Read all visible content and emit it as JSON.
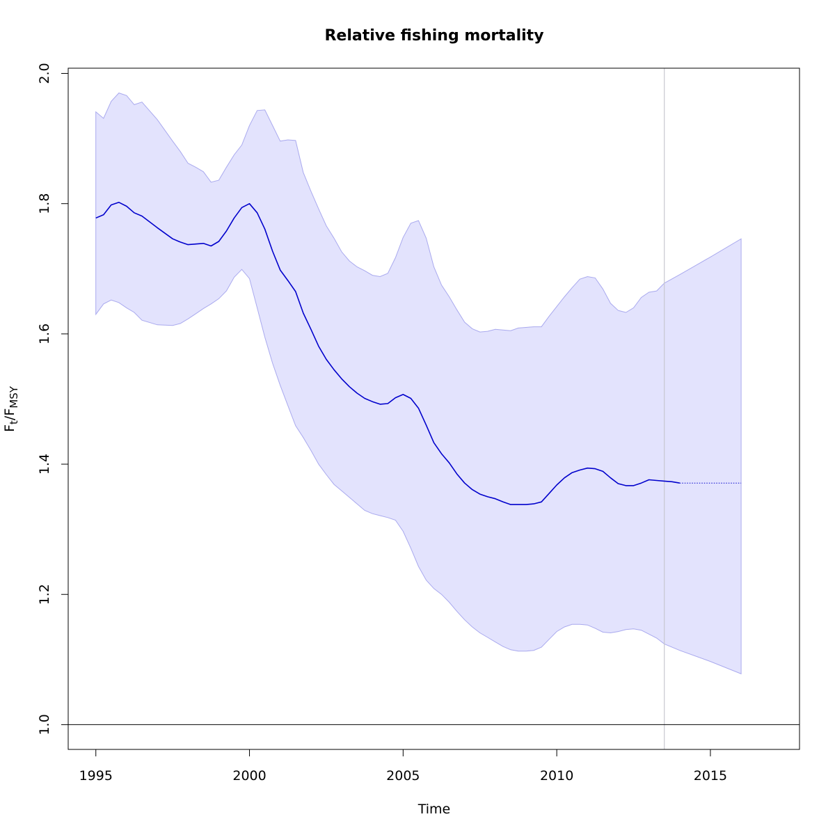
{
  "chart_data": {
    "type": "line",
    "title": "Relative fishing mortality",
    "xlabel": "Time",
    "ylabel": {
      "main": "F",
      "sub1": "t",
      "sep": "/F",
      "sub2": "MSY"
    },
    "xlim": [
      1994.1,
      2017.9
    ],
    "ylim": [
      0.962,
      2.008
    ],
    "x_ticks": [
      {
        "value": 1995,
        "label": "1995"
      },
      {
        "value": 2000,
        "label": "2000"
      },
      {
        "value": 2005,
        "label": "2005"
      },
      {
        "value": 2010,
        "label": "2010"
      },
      {
        "value": 2015,
        "label": "2015"
      }
    ],
    "y_ticks": [
      {
        "value": 1.0,
        "label": "1.0"
      },
      {
        "value": 1.2,
        "label": "1.2"
      },
      {
        "value": 1.4,
        "label": "1.4"
      },
      {
        "value": 1.6,
        "label": "1.6"
      },
      {
        "value": 1.8,
        "label": "1.8"
      },
      {
        "value": 2.0,
        "label": "2.0"
      }
    ],
    "reference_line_y": 1.0,
    "vertical_line_x": 2013.5,
    "colors": {
      "band_fill": "#e3e3fd",
      "band_edge": "#a9a9ee",
      "line": "#0000cc",
      "vline": "#c8c8d0",
      "refline": "#000000"
    },
    "series": [
      {
        "role": "estimate",
        "x": [
          1995.0,
          1995.25,
          1995.5,
          1995.75,
          1996.0,
          1996.25,
          1996.5,
          1997.0,
          1997.5,
          1997.75,
          1998.0,
          1998.5,
          1998.75,
          1999.0,
          1999.25,
          1999.5,
          1999.75,
          2000.0,
          2000.25,
          2000.5,
          2000.75,
          2001.0,
          2001.25,
          2001.5,
          2001.75,
          2002.0,
          2002.25,
          2002.5,
          2002.75,
          2003.0,
          2003.25,
          2003.5,
          2003.75,
          2004.0,
          2004.25,
          2004.5,
          2004.75,
          2005.0,
          2005.25,
          2005.5,
          2005.75,
          2006.0,
          2006.25,
          2006.5,
          2006.75,
          2007.0,
          2007.25,
          2007.5,
          2007.75,
          2008.0,
          2008.25,
          2008.5,
          2008.75,
          2009.0,
          2009.25,
          2009.5,
          2009.75,
          2010.0,
          2010.25,
          2010.5,
          2010.75,
          2011.0,
          2011.25,
          2011.5,
          2011.75,
          2012.0,
          2012.25,
          2012.5,
          2012.75,
          2013.0,
          2013.25,
          2013.5,
          2013.75,
          2014.0
        ],
        "y": [
          1.778,
          1.783,
          1.798,
          1.802,
          1.796,
          1.786,
          1.781,
          1.763,
          1.746,
          1.741,
          1.737,
          1.739,
          1.735,
          1.742,
          1.758,
          1.778,
          1.794,
          1.8,
          1.786,
          1.761,
          1.727,
          1.698,
          1.682,
          1.665,
          1.632,
          1.607,
          1.581,
          1.561,
          1.545,
          1.531,
          1.519,
          1.509,
          1.501,
          1.496,
          1.492,
          1.493,
          1.502,
          1.507,
          1.501,
          1.486,
          1.46,
          1.433,
          1.416,
          1.402,
          1.385,
          1.371,
          1.361,
          1.354,
          1.35,
          1.347,
          1.342,
          1.338,
          1.338,
          1.338,
          1.339,
          1.342,
          1.355,
          1.368,
          1.379,
          1.387,
          1.391,
          1.394,
          1.393,
          1.389,
          1.379,
          1.37,
          1.367,
          1.367,
          1.371,
          1.376,
          1.375,
          1.374,
          1.373,
          1.371
        ]
      },
      {
        "role": "forecast",
        "x": [
          2014.0,
          2016.0
        ],
        "y": [
          1.371,
          1.371
        ]
      },
      {
        "role": "upper",
        "x": [
          1995.0,
          1995.25,
          1995.5,
          1995.75,
          1996.0,
          1996.25,
          1996.5,
          1997.0,
          1997.5,
          1997.75,
          1998.0,
          1998.25,
          1998.5,
          1998.75,
          1999.0,
          1999.25,
          1999.5,
          1999.75,
          2000.0,
          2000.25,
          2000.5,
          2000.75,
          2001.0,
          2001.25,
          2001.5,
          2001.75,
          2002.0,
          2002.25,
          2002.5,
          2002.75,
          2003.0,
          2003.25,
          2003.5,
          2003.75,
          2004.0,
          2004.25,
          2004.5,
          2004.75,
          2005.0,
          2005.25,
          2005.5,
          2005.75,
          2006.0,
          2006.25,
          2006.5,
          2006.75,
          2007.0,
          2007.25,
          2007.5,
          2007.75,
          2008.0,
          2008.25,
          2008.5,
          2008.75,
          2009.0,
          2009.25,
          2009.5,
          2009.75,
          2010.0,
          2010.25,
          2010.5,
          2010.75,
          2011.0,
          2011.25,
          2011.5,
          2011.75,
          2012.0,
          2012.25,
          2012.5,
          2012.75,
          2013.0,
          2013.25,
          2013.5,
          2014.0,
          2015.0,
          2016.0
        ],
        "y": [
          1.941,
          1.931,
          1.957,
          1.97,
          1.966,
          1.952,
          1.956,
          1.929,
          1.896,
          1.88,
          1.862,
          1.856,
          1.849,
          1.833,
          1.836,
          1.856,
          1.875,
          1.89,
          1.92,
          1.943,
          1.944,
          1.92,
          1.896,
          1.898,
          1.897,
          1.848,
          1.819,
          1.792,
          1.766,
          1.747,
          1.726,
          1.712,
          1.703,
          1.697,
          1.69,
          1.688,
          1.693,
          1.717,
          1.748,
          1.77,
          1.774,
          1.747,
          1.703,
          1.675,
          1.657,
          1.637,
          1.618,
          1.608,
          1.603,
          1.604,
          1.607,
          1.606,
          1.605,
          1.609,
          1.61,
          1.611,
          1.611,
          1.627,
          1.642,
          1.657,
          1.671,
          1.684,
          1.688,
          1.686,
          1.669,
          1.647,
          1.636,
          1.633,
          1.64,
          1.656,
          1.664,
          1.666,
          1.678,
          1.691,
          1.718,
          1.746
        ]
      },
      {
        "role": "lower",
        "x": [
          1995.0,
          1995.25,
          1995.5,
          1995.75,
          1996.0,
          1996.25,
          1996.5,
          1997.0,
          1997.5,
          1997.75,
          1998.0,
          1998.25,
          1998.5,
          1998.75,
          1999.0,
          1999.25,
          1999.5,
          1999.75,
          2000.0,
          2000.25,
          2000.5,
          2000.75,
          2001.0,
          2001.25,
          2001.5,
          2001.75,
          2002.0,
          2002.25,
          2002.5,
          2002.75,
          2003.0,
          2003.25,
          2003.5,
          2003.75,
          2004.0,
          2004.25,
          2004.5,
          2004.75,
          2005.0,
          2005.25,
          2005.5,
          2005.75,
          2006.0,
          2006.25,
          2006.5,
          2006.75,
          2007.0,
          2007.25,
          2007.5,
          2007.75,
          2008.0,
          2008.25,
          2008.5,
          2008.75,
          2009.0,
          2009.25,
          2009.5,
          2009.75,
          2010.0,
          2010.25,
          2010.5,
          2010.75,
          2011.0,
          2011.25,
          2011.5,
          2011.75,
          2012.0,
          2012.25,
          2012.5,
          2012.75,
          2013.0,
          2013.25,
          2013.5,
          2014.0,
          2015.0,
          2016.0
        ],
        "y": [
          1.63,
          1.646,
          1.652,
          1.648,
          1.64,
          1.633,
          1.621,
          1.614,
          1.613,
          1.616,
          1.623,
          1.631,
          1.639,
          1.646,
          1.654,
          1.666,
          1.687,
          1.699,
          1.685,
          1.64,
          1.595,
          1.555,
          1.521,
          1.49,
          1.459,
          1.441,
          1.421,
          1.4,
          1.384,
          1.369,
          1.359,
          1.349,
          1.339,
          1.329,
          1.324,
          1.321,
          1.318,
          1.314,
          1.297,
          1.271,
          1.243,
          1.222,
          1.209,
          1.2,
          1.188,
          1.174,
          1.161,
          1.15,
          1.141,
          1.134,
          1.127,
          1.12,
          1.115,
          1.113,
          1.113,
          1.114,
          1.119,
          1.131,
          1.143,
          1.15,
          1.154,
          1.154,
          1.153,
          1.148,
          1.142,
          1.141,
          1.143,
          1.146,
          1.147,
          1.145,
          1.139,
          1.133,
          1.124,
          1.114,
          1.097,
          1.078
        ]
      }
    ]
  }
}
